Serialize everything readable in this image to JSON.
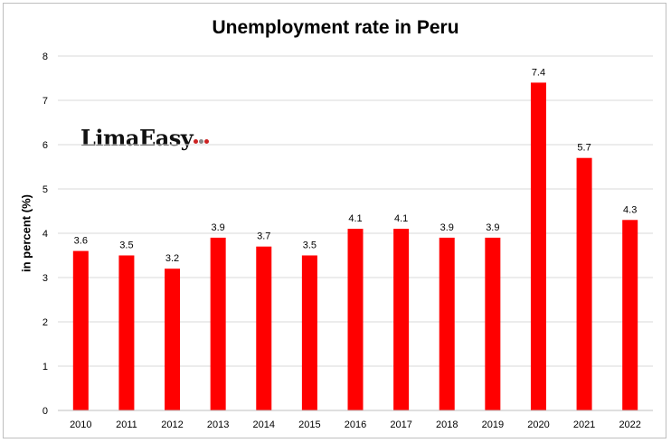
{
  "logo": {
    "text": "LimaEasy",
    "dot_colors": [
      "#cc2222",
      "#888888",
      "#cc2222"
    ]
  },
  "chart_data": {
    "type": "bar",
    "title": "Unemployment rate in Peru",
    "xlabel": "",
    "ylabel": "in percent (%)",
    "categories": [
      "2010",
      "2011",
      "2012",
      "2013",
      "2014",
      "2015",
      "2016",
      "2017",
      "2018",
      "2019",
      "2020",
      "2021",
      "2022"
    ],
    "values": [
      3.6,
      3.5,
      3.2,
      3.9,
      3.7,
      3.5,
      4.1,
      4.1,
      3.9,
      3.9,
      7.4,
      5.7,
      4.3
    ],
    "ylim": [
      0,
      8
    ],
    "yticks": [
      0,
      1,
      2,
      3,
      4,
      5,
      6,
      7,
      8
    ],
    "grid": true,
    "bar_color": "#ff0000",
    "grid_color": "#d9d9d9"
  }
}
